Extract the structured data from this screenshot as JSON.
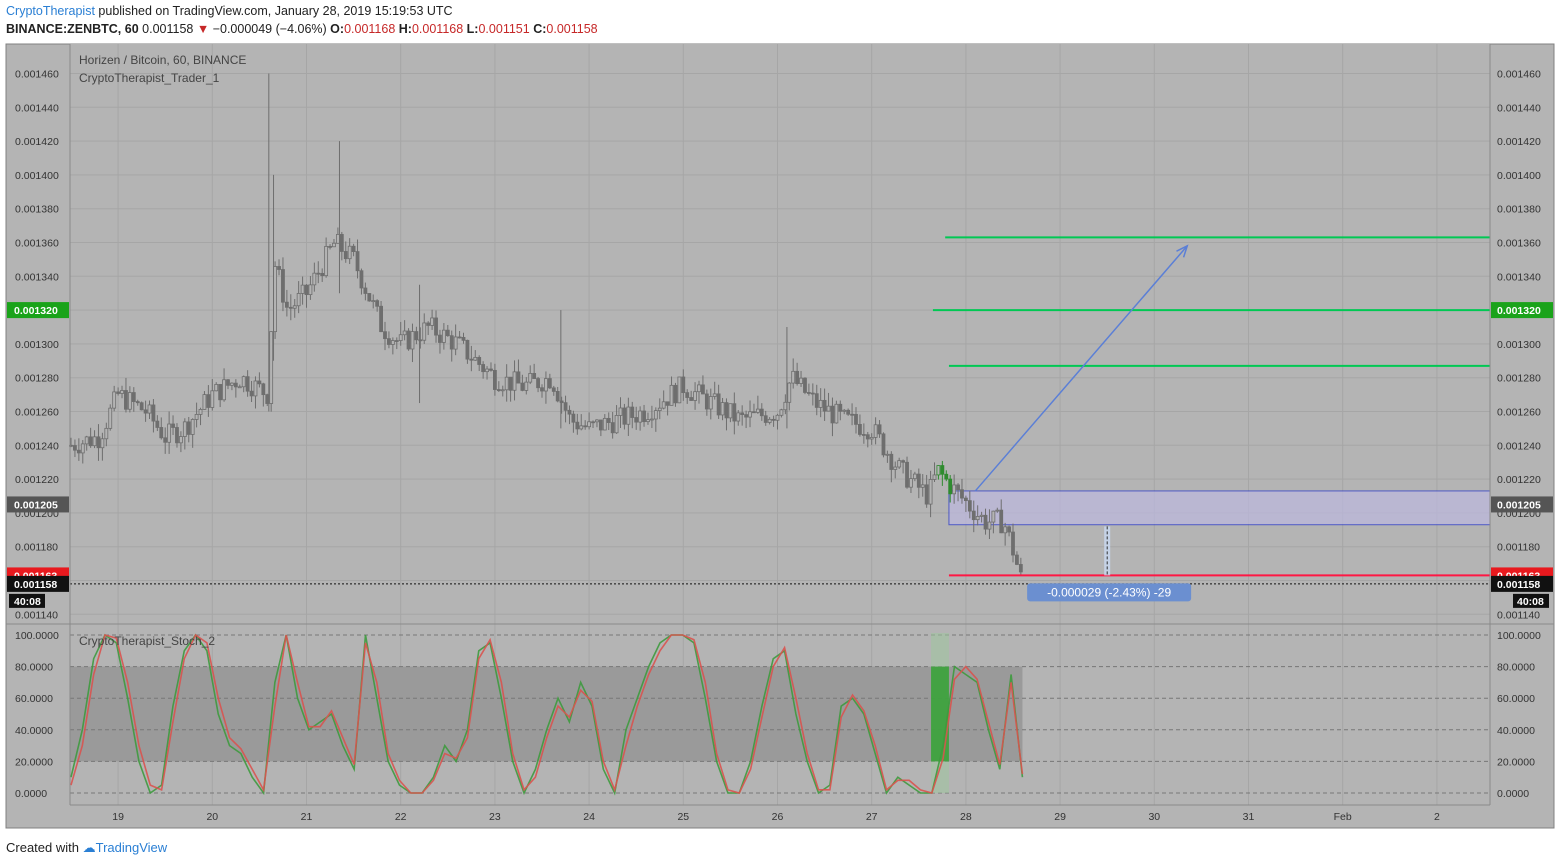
{
  "header": {
    "publisher": "CryptoTherapist",
    "published_text": "published on TradingView.com, January 28, 2019 15:19:53 UTC",
    "symbol_interval": "BINANCE:ZENBTC, 60",
    "last": "0.001158",
    "change": "−0.000049 (−4.06%)",
    "o_label": "O:",
    "o_value": "0.001168",
    "h_label": "H:",
    "h_value": "0.001168",
    "l_label": "L:",
    "l_value": "0.001151",
    "c_label": "C:",
    "c_value": "0.001158"
  },
  "footer": {
    "created_with": "Created with",
    "brand": "TradingView"
  },
  "chart_data": [
    {
      "type": "candlestick",
      "title": "Horizen / Bitcoin, 60, BINANCE",
      "indicator": "CryptoTherapist_Trader_1",
      "ylim": [
        0.00114,
        0.00147
      ],
      "y_ticks": [
        "0.001460",
        "0.001440",
        "0.001420",
        "0.001400",
        "0.001380",
        "0.001360",
        "0.001340",
        "0.001320",
        "0.001300",
        "0.001280",
        "0.001260",
        "0.001240",
        "0.001220",
        "0.001200",
        "0.001180",
        "0.001160",
        "0.001140"
      ],
      "x_ticks": [
        "19",
        "20",
        "21",
        "22",
        "23",
        "24",
        "25",
        "26",
        "27",
        "28",
        "29",
        "30",
        "31",
        "Feb",
        "2"
      ],
      "price_path": [
        {
          "x": 18.5,
          "p": 0.00124
        },
        {
          "x": 18.8,
          "p": 0.001245
        },
        {
          "x": 19.0,
          "p": 0.00127
        },
        {
          "x": 19.3,
          "p": 0.00126
        },
        {
          "x": 19.5,
          "p": 0.001245
        },
        {
          "x": 19.7,
          "p": 0.00125
        },
        {
          "x": 20.0,
          "p": 0.00127
        },
        {
          "x": 20.3,
          "p": 0.00128
        },
        {
          "x": 20.6,
          "p": 0.00127
        },
        {
          "x": 20.65,
          "p": 0.00135
        },
        {
          "x": 20.8,
          "p": 0.00132
        },
        {
          "x": 21.0,
          "p": 0.00133
        },
        {
          "x": 21.3,
          "p": 0.00136
        },
        {
          "x": 21.5,
          "p": 0.00135
        },
        {
          "x": 21.8,
          "p": 0.00131
        },
        {
          "x": 22.0,
          "p": 0.0013
        },
        {
          "x": 22.3,
          "p": 0.00131
        },
        {
          "x": 22.6,
          "p": 0.0013
        },
        {
          "x": 23.0,
          "p": 0.00128
        },
        {
          "x": 23.3,
          "p": 0.001275
        },
        {
          "x": 23.6,
          "p": 0.00128
        },
        {
          "x": 23.8,
          "p": 0.001255
        },
        {
          "x": 24.0,
          "p": 0.00125
        },
        {
          "x": 24.3,
          "p": 0.001255
        },
        {
          "x": 24.6,
          "p": 0.00126
        },
        {
          "x": 25.0,
          "p": 0.001275
        },
        {
          "x": 25.3,
          "p": 0.001265
        },
        {
          "x": 25.6,
          "p": 0.001255
        },
        {
          "x": 26.0,
          "p": 0.00126
        },
        {
          "x": 26.15,
          "p": 0.00128
        },
        {
          "x": 26.4,
          "p": 0.001265
        },
        {
          "x": 26.7,
          "p": 0.001255
        },
        {
          "x": 27.0,
          "p": 0.00125
        },
        {
          "x": 27.3,
          "p": 0.001225
        },
        {
          "x": 27.6,
          "p": 0.00121
        },
        {
          "x": 27.7,
          "p": 0.001225
        },
        {
          "x": 27.9,
          "p": 0.001212
        },
        {
          "x": 28.2,
          "p": 0.001195
        },
        {
          "x": 28.4,
          "p": 0.001195
        },
        {
          "x": 28.5,
          "p": 0.001178
        },
        {
          "x": 28.6,
          "p": 0.001158
        }
      ],
      "spikes": [
        {
          "x": 20.6,
          "high": 0.00146,
          "low": 0.00126
        },
        {
          "x": 20.65,
          "high": 0.0014,
          "low": 0.00129
        },
        {
          "x": 21.35,
          "high": 0.00142,
          "low": 0.00133
        },
        {
          "x": 22.2,
          "high": 0.001335,
          "low": 0.001265
        },
        {
          "x": 23.7,
          "high": 0.00132,
          "low": 0.00125
        },
        {
          "x": 26.1,
          "high": 0.00131,
          "low": 0.00125
        }
      ],
      "levels": [
        {
          "kind": "target",
          "price": 0.001363,
          "x_start": 27.78,
          "color": "#00c853"
        },
        {
          "kind": "target",
          "price": 0.00132,
          "x_start": 27.65,
          "color": "#00c853"
        },
        {
          "kind": "target",
          "price": 0.001287,
          "x_start": 27.82,
          "color": "#00c853"
        },
        {
          "kind": "stop",
          "price": 0.001163,
          "x_start": 27.82,
          "color": "#ff1744"
        }
      ],
      "zone": {
        "top": 0.001213,
        "bottom": 0.001193,
        "x_start": 27.82
      },
      "arrow": {
        "x1": 28.1,
        "y1": 0.001213,
        "x2": 30.35,
        "y2": 0.001358
      },
      "measure": {
        "x": 29.5,
        "from": 0.001192,
        "to": 0.001163,
        "label": "-0.000029 (-2.43%) -29"
      },
      "price_badges": [
        {
          "text": "0.001320",
          "price": 0.00132,
          "color": "#1aa31a"
        },
        {
          "text": "0.001205",
          "price": 0.001205,
          "color": "#555555"
        },
        {
          "text": "0.001163",
          "price": 0.001163,
          "color": "#e8191e"
        },
        {
          "text": "0.001158",
          "price": 0.001158,
          "color": "#111111"
        }
      ],
      "countdown": "40:08"
    },
    {
      "type": "line",
      "indicator": "CryptoTherapist_Stoch_2",
      "ylim": [
        0,
        100
      ],
      "y_ticks": [
        "100.0000",
        "80.0000",
        "60.0000",
        "40.0000",
        "20.0000",
        "0.0000"
      ],
      "band": [
        20,
        80
      ],
      "series": [
        {
          "color": "#3e9a3e",
          "values": [
            10,
            40,
            85,
            100,
            95,
            60,
            20,
            0,
            5,
            55,
            90,
            100,
            90,
            50,
            30,
            25,
            10,
            0,
            70,
            100,
            60,
            40,
            45,
            50,
            30,
            15,
            100,
            60,
            20,
            5,
            0,
            0,
            10,
            30,
            20,
            40,
            90,
            95,
            60,
            20,
            0,
            15,
            40,
            60,
            45,
            70,
            55,
            15,
            0,
            40,
            60,
            80,
            95,
            100,
            100,
            95,
            60,
            20,
            0,
            0,
            20,
            55,
            85,
            90,
            50,
            20,
            0,
            5,
            55,
            60,
            50,
            25,
            0,
            10,
            5,
            0,
            0,
            30,
            80,
            75,
            70,
            40,
            15,
            75,
            10
          ]
        },
        {
          "color": "#d9534f",
          "values": [
            5,
            30,
            75,
            100,
            98,
            70,
            30,
            5,
            2,
            45,
            85,
            100,
            95,
            60,
            35,
            28,
            15,
            2,
            55,
            100,
            70,
            42,
            42,
            52,
            35,
            18,
            95,
            70,
            25,
            8,
            0,
            0,
            8,
            25,
            22,
            35,
            85,
            97,
            70,
            25,
            2,
            10,
            35,
            55,
            48,
            65,
            58,
            20,
            2,
            30,
            55,
            75,
            90,
            100,
            100,
            97,
            70,
            25,
            2,
            0,
            15,
            48,
            80,
            92,
            60,
            25,
            2,
            2,
            48,
            62,
            52,
            30,
            2,
            8,
            8,
            2,
            0,
            22,
            72,
            80,
            72,
            45,
            18,
            70,
            12
          ]
        }
      ],
      "highlight": {
        "x_start": 27.63,
        "x_end": 27.82
      }
    }
  ]
}
